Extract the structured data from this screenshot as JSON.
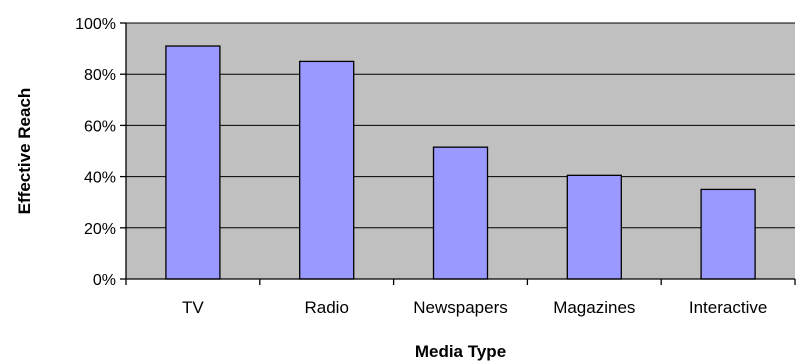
{
  "chart_data": {
    "type": "bar",
    "categories": [
      "TV",
      "Radio",
      "Newspapers",
      "Magazines",
      "Interactive"
    ],
    "values": [
      91,
      85,
      51.5,
      40.5,
      35
    ],
    "title": "",
    "xlabel": "Media Type",
    "ylabel": "Effective Reach",
    "ylim": [
      0,
      100
    ],
    "yticks": [
      0,
      20,
      40,
      60,
      80,
      100
    ],
    "ytick_labels": [
      "0%",
      "20%",
      "40%",
      "60%",
      "80%",
      "100%"
    ],
    "grid": true,
    "legend": "none",
    "colors": {
      "bar_fill": "#9999ff",
      "plot_background": "#c0c0c0",
      "bar_outline": "#000000",
      "gridline": "#000000"
    }
  }
}
